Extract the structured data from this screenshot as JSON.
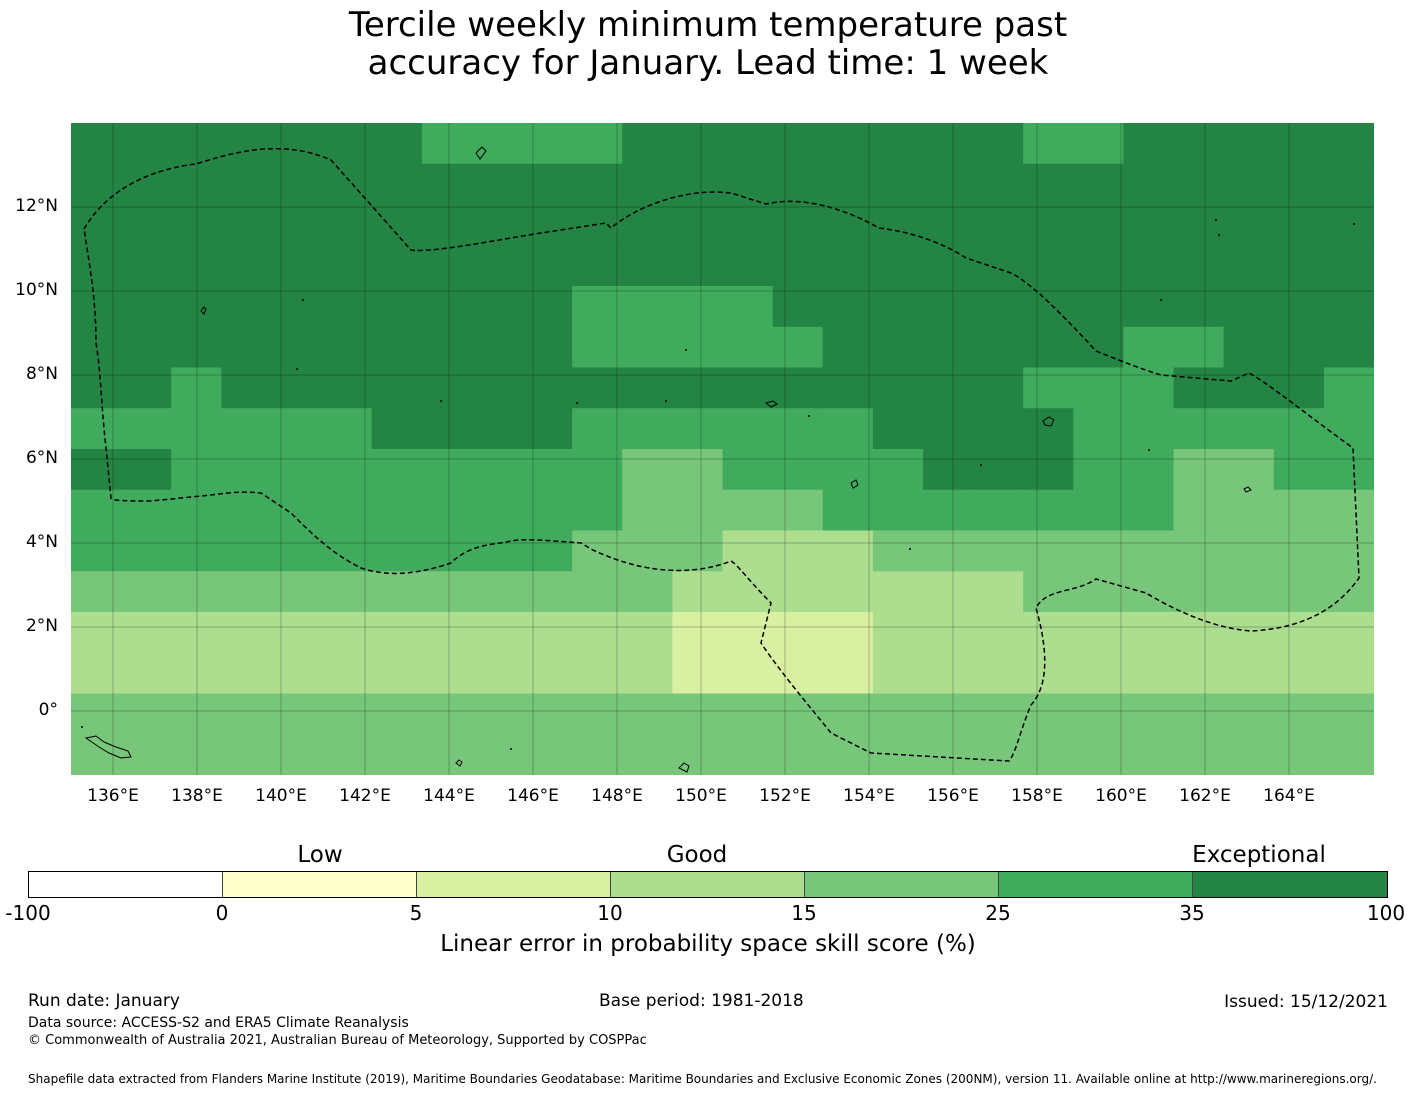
{
  "title_line1": "Tercile weekly minimum temperature past",
  "title_line2": "accuracy for January. Lead time: 1 week",
  "map": {
    "lat_ticks": [
      "12°N",
      "10°N",
      "8°N",
      "6°N",
      "4°N",
      "2°N",
      "0°"
    ],
    "lon_ticks": [
      "136°E",
      "138°E",
      "140°E",
      "142°E",
      "144°E",
      "146°E",
      "148°E",
      "150°E",
      "152°E",
      "154°E",
      "156°E",
      "158°E",
      "160°E",
      "162°E",
      "164°E"
    ],
    "grid_rows": [
      "66666665555666666665566666",
      "66666666666666666666666666",
      "66666666666666666666666666",
      "66666666666666666666666666",
      "66666666665555666666666666",
      "66666666665555566666655666",
      "66566666666666666665556665",
      "55555566665555556666555555",
      "66555555555445555666554455",
      "55555555555444455555554444",
      "55555555554443334444444444",
      "44444444444433333334444444",
      "33333333333322223333333333",
      "33333333333322223333333333",
      "44444444444444444444444444",
      "44444444444444444444444444"
    ],
    "colors": {
      "c0": "#ffffff",
      "c1": "#ffffcc",
      "c2": "#d9f0a3",
      "c3": "#addd8e",
      "c4": "#78c679",
      "c5": "#41ab5d",
      "c6": "#238443"
    }
  },
  "colorbar": {
    "categories": [
      "Low",
      "Good",
      "Exceptional"
    ],
    "ticks": [
      "-100",
      "0",
      "5",
      "10",
      "15",
      "25",
      "35",
      "100"
    ],
    "label": "Linear error in probability space skill score (%)"
  },
  "footer": {
    "run_date": "Run date: January",
    "base_period": "Base period: 1981-2018",
    "issued": "Issued: 15/12/2021",
    "data_source": "Data source: ACCESS-S2 and ERA5 Climate Reanalysis",
    "copyright": "© Commonwealth of Australia 2021, Australian Bureau of Meteorology, Supported by COSPPac",
    "shapefile": "Shapefile data extracted from Flanders Marine Institute (2019), Maritime Boundaries Geodatabase: Maritime Boundaries and Exclusive Economic Zones (200NM), version 11. Available online at http://www.marineregions.org/."
  }
}
